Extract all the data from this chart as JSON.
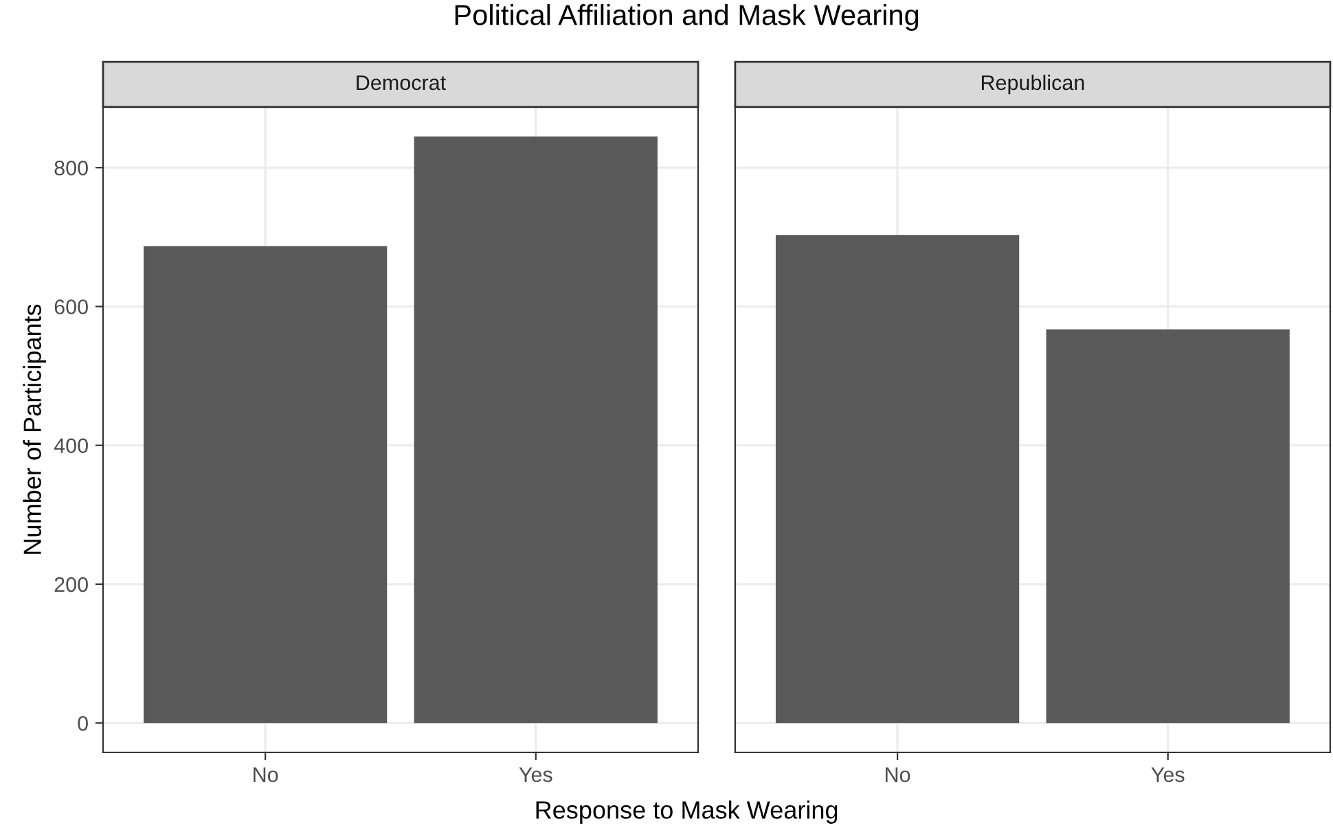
{
  "chart_data": [
    {
      "type": "bar",
      "title": "Democrat",
      "annotations": [
        "Political Affiliation and Mask Wearing"
      ],
      "xlabel": "Response to Mask Wearing",
      "ylabel": "Number of Participants",
      "categories": [
        "No",
        "Yes"
      ],
      "values": [
        687,
        845
      ],
      "color": "#595959",
      "ylim": [
        -42.25,
        887.25
      ],
      "yticks": [
        0,
        200,
        400,
        600,
        800
      ],
      "grid": true
    },
    {
      "type": "bar",
      "title": "Republican",
      "categories": [
        "No",
        "Yes"
      ],
      "values": [
        703,
        567
      ],
      "color": "#595959",
      "ylim": [
        -42.25,
        887.25
      ],
      "yticks": [
        0,
        200,
        400,
        600,
        800
      ],
      "grid": true,
      "tick_labels": "x"
    }
  ]
}
